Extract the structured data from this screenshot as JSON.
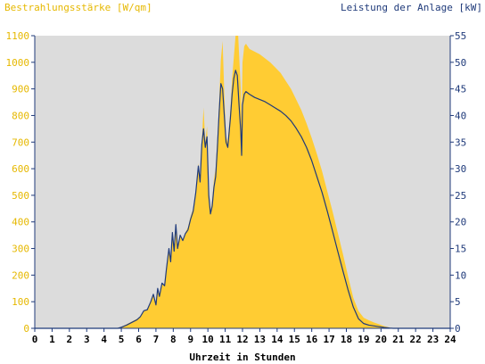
{
  "chart_data": {
    "type": "area",
    "left_axis_title": "Bestrahlungsstärke [W/qm]",
    "right_axis_title": "Leistung der Anlage [kW]",
    "xlabel": "Uhrzeit in Stunden",
    "x_ticks": [
      "0",
      "1",
      "2",
      "3",
      "4",
      "5",
      "6",
      "7",
      "8",
      "9",
      "10",
      "11",
      "12",
      "13",
      "14",
      "15",
      "16",
      "17",
      "18",
      "19",
      "20",
      "21",
      "22",
      "23",
      "24"
    ],
    "left_ticks": [
      "0",
      "100",
      "200",
      "300",
      "400",
      "500",
      "600",
      "700",
      "800",
      "900",
      "1000",
      "1100"
    ],
    "right_ticks": [
      "0",
      "5",
      "10",
      "15",
      "20",
      "25",
      "30",
      "35",
      "40",
      "45",
      "50",
      "55"
    ],
    "xlim": [
      0,
      24
    ],
    "ylim_left": [
      0,
      1100
    ],
    "ylim_right": [
      0,
      55
    ],
    "colors": {
      "irradiance": "#ffcc33",
      "power": "#1f3a7a",
      "plot_bg": "#dcdcdc",
      "left_axis_text": "#e6b800",
      "right_axis_text": "#1f3a7a"
    },
    "series": [
      {
        "name": "Bestrahlungsstärke",
        "axis": "left",
        "style": "area",
        "points": [
          [
            0,
            0
          ],
          [
            4.5,
            0
          ],
          [
            4.8,
            2
          ],
          [
            5.0,
            5
          ],
          [
            5.3,
            15
          ],
          [
            5.6,
            25
          ],
          [
            5.9,
            35
          ],
          [
            6.1,
            45
          ],
          [
            6.3,
            65
          ],
          [
            6.5,
            70
          ],
          [
            6.7,
            100
          ],
          [
            6.85,
            125
          ],
          [
            7.0,
            90
          ],
          [
            7.1,
            150
          ],
          [
            7.2,
            120
          ],
          [
            7.35,
            170
          ],
          [
            7.5,
            160
          ],
          [
            7.6,
            220
          ],
          [
            7.75,
            300
          ],
          [
            7.85,
            250
          ],
          [
            7.95,
            360
          ],
          [
            8.05,
            290
          ],
          [
            8.15,
            400
          ],
          [
            8.25,
            300
          ],
          [
            8.4,
            350
          ],
          [
            8.55,
            330
          ],
          [
            8.7,
            360
          ],
          [
            8.85,
            380
          ],
          [
            9.0,
            420
          ],
          [
            9.15,
            450
          ],
          [
            9.3,
            520
          ],
          [
            9.45,
            620
          ],
          [
            9.55,
            560
          ],
          [
            9.65,
            700
          ],
          [
            9.75,
            830
          ],
          [
            9.85,
            700
          ],
          [
            9.95,
            760
          ],
          [
            10.05,
            520
          ],
          [
            10.15,
            440
          ],
          [
            10.25,
            480
          ],
          [
            10.35,
            560
          ],
          [
            10.45,
            600
          ],
          [
            10.55,
            720
          ],
          [
            10.65,
            850
          ],
          [
            10.75,
            1010
          ],
          [
            10.85,
            1080
          ],
          [
            10.95,
            880
          ],
          [
            11.05,
            720
          ],
          [
            11.15,
            700
          ],
          [
            11.3,
            820
          ],
          [
            11.4,
            940
          ],
          [
            11.5,
            1020
          ],
          [
            11.6,
            1100
          ],
          [
            11.75,
            1100
          ],
          [
            11.9,
            900
          ],
          [
            11.95,
            780
          ],
          [
            12.0,
            1000
          ],
          [
            12.1,
            1060
          ],
          [
            12.2,
            1070
          ],
          [
            12.4,
            1050
          ],
          [
            12.7,
            1040
          ],
          [
            13.0,
            1030
          ],
          [
            13.3,
            1015
          ],
          [
            13.6,
            1000
          ],
          [
            13.9,
            980
          ],
          [
            14.2,
            960
          ],
          [
            14.5,
            930
          ],
          [
            14.8,
            900
          ],
          [
            15.1,
            860
          ],
          [
            15.4,
            820
          ],
          [
            15.7,
            770
          ],
          [
            16.0,
            715
          ],
          [
            16.3,
            655
          ],
          [
            16.6,
            590
          ],
          [
            16.9,
            515
          ],
          [
            17.2,
            440
          ],
          [
            17.5,
            360
          ],
          [
            17.8,
            280
          ],
          [
            18.1,
            195
          ],
          [
            18.4,
            115
          ],
          [
            18.7,
            65
          ],
          [
            19.0,
            40
          ],
          [
            19.3,
            30
          ],
          [
            19.6,
            22
          ],
          [
            19.9,
            15
          ],
          [
            20.2,
            8
          ],
          [
            20.5,
            3
          ],
          [
            20.7,
            0
          ],
          [
            24,
            0
          ]
        ]
      },
      {
        "name": "Leistung der Anlage",
        "axis": "right",
        "style": "line",
        "points": [
          [
            0,
            0
          ],
          [
            4.8,
            0
          ],
          [
            5.0,
            0.2
          ],
          [
            5.3,
            0.6
          ],
          [
            5.6,
            1.1
          ],
          [
            5.9,
            1.6
          ],
          [
            6.1,
            2.2
          ],
          [
            6.3,
            3.3
          ],
          [
            6.5,
            3.5
          ],
          [
            6.7,
            5.0
          ],
          [
            6.85,
            6.4
          ],
          [
            7.0,
            4.4
          ],
          [
            7.1,
            7.5
          ],
          [
            7.2,
            6.0
          ],
          [
            7.35,
            8.5
          ],
          [
            7.5,
            8.0
          ],
          [
            7.6,
            11.0
          ],
          [
            7.75,
            15.0
          ],
          [
            7.85,
            12.5
          ],
          [
            7.95,
            18.0
          ],
          [
            8.05,
            14.5
          ],
          [
            8.15,
            19.5
          ],
          [
            8.25,
            15.0
          ],
          [
            8.4,
            17.5
          ],
          [
            8.55,
            16.5
          ],
          [
            8.7,
            17.8
          ],
          [
            8.85,
            18.5
          ],
          [
            9.0,
            20.5
          ],
          [
            9.15,
            22.0
          ],
          [
            9.3,
            25.5
          ],
          [
            9.45,
            30.5
          ],
          [
            9.55,
            27.5
          ],
          [
            9.65,
            34.5
          ],
          [
            9.75,
            37.5
          ],
          [
            9.85,
            34.0
          ],
          [
            9.95,
            36.0
          ],
          [
            10.05,
            25.0
          ],
          [
            10.15,
            21.5
          ],
          [
            10.25,
            23.0
          ],
          [
            10.35,
            26.5
          ],
          [
            10.45,
            28.5
          ],
          [
            10.55,
            34.0
          ],
          [
            10.65,
            40.5
          ],
          [
            10.75,
            46.0
          ],
          [
            10.85,
            45.0
          ],
          [
            10.95,
            40.0
          ],
          [
            11.05,
            35.0
          ],
          [
            11.15,
            34.0
          ],
          [
            11.3,
            39.5
          ],
          [
            11.4,
            44.0
          ],
          [
            11.5,
            47.0
          ],
          [
            11.6,
            48.5
          ],
          [
            11.7,
            47.5
          ],
          [
            11.8,
            42.0
          ],
          [
            11.9,
            37.0
          ],
          [
            11.95,
            32.5
          ],
          [
            12.0,
            42.0
          ],
          [
            12.1,
            44.0
          ],
          [
            12.2,
            44.5
          ],
          [
            12.4,
            44.0
          ],
          [
            12.7,
            43.4
          ],
          [
            13.0,
            43.0
          ],
          [
            13.3,
            42.6
          ],
          [
            13.6,
            42.0
          ],
          [
            13.9,
            41.4
          ],
          [
            14.2,
            40.8
          ],
          [
            14.5,
            40.0
          ],
          [
            14.8,
            39.0
          ],
          [
            15.1,
            37.6
          ],
          [
            15.4,
            36.0
          ],
          [
            15.7,
            34.0
          ],
          [
            16.0,
            31.5
          ],
          [
            16.3,
            28.5
          ],
          [
            16.6,
            25.5
          ],
          [
            16.9,
            22.0
          ],
          [
            17.2,
            18.3
          ],
          [
            17.5,
            14.5
          ],
          [
            17.8,
            10.8
          ],
          [
            18.1,
            7.2
          ],
          [
            18.4,
            4.0
          ],
          [
            18.7,
            1.8
          ],
          [
            19.0,
            0.9
          ],
          [
            19.3,
            0.6
          ],
          [
            19.6,
            0.45
          ],
          [
            19.9,
            0.3
          ],
          [
            20.2,
            0.15
          ],
          [
            20.5,
            0.05
          ],
          [
            20.7,
            0
          ],
          [
            24,
            0
          ]
        ]
      }
    ]
  }
}
